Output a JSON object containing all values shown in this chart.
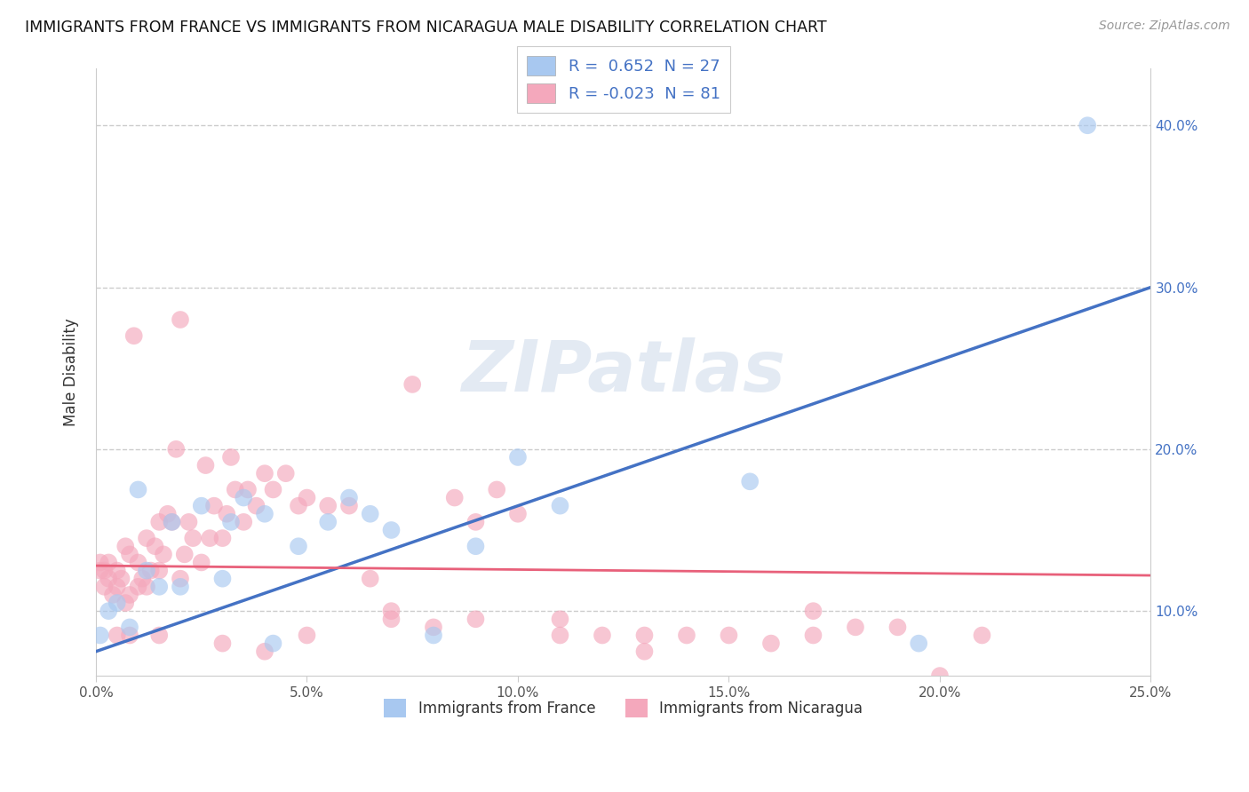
{
  "title": "IMMIGRANTS FROM FRANCE VS IMMIGRANTS FROM NICARAGUA MALE DISABILITY CORRELATION CHART",
  "source": "Source: ZipAtlas.com",
  "xlabel_france": "Immigrants from France",
  "xlabel_nicaragua": "Immigrants from Nicaragua",
  "ylabel": "Male Disability",
  "watermark": "ZIPatlas",
  "r_france": 0.652,
  "n_france": 27,
  "r_nicaragua": -0.023,
  "n_nicaragua": 81,
  "xlim": [
    0.0,
    0.25
  ],
  "ylim": [
    0.06,
    0.435
  ],
  "xticks": [
    0.0,
    0.05,
    0.1,
    0.15,
    0.2,
    0.25
  ],
  "yticks": [
    0.1,
    0.2,
    0.3,
    0.4
  ],
  "france_color": "#A8C8F0",
  "nicaragua_color": "#F4A8BC",
  "france_line_color": "#4472C4",
  "nicaragua_line_color": "#E8607A",
  "grid_color": "#CCCCCC",
  "france_line_x0": 0.0,
  "france_line_y0": 0.075,
  "france_line_x1": 0.25,
  "france_line_y1": 0.3,
  "nicaragua_line_x0": 0.0,
  "nicaragua_line_y0": 0.128,
  "nicaragua_line_x1": 0.25,
  "nicaragua_line_y1": 0.122,
  "france_scatter_x": [
    0.001,
    0.003,
    0.005,
    0.008,
    0.01,
    0.012,
    0.015,
    0.018,
    0.02,
    0.025,
    0.03,
    0.032,
    0.035,
    0.04,
    0.042,
    0.048,
    0.055,
    0.06,
    0.065,
    0.07,
    0.08,
    0.09,
    0.1,
    0.11,
    0.155,
    0.195,
    0.235
  ],
  "france_scatter_y": [
    0.085,
    0.1,
    0.105,
    0.09,
    0.175,
    0.125,
    0.115,
    0.155,
    0.115,
    0.165,
    0.12,
    0.155,
    0.17,
    0.16,
    0.08,
    0.14,
    0.155,
    0.17,
    0.16,
    0.15,
    0.085,
    0.14,
    0.195,
    0.165,
    0.18,
    0.08,
    0.4
  ],
  "nicaragua_scatter_x": [
    0.001,
    0.001,
    0.002,
    0.003,
    0.003,
    0.004,
    0.005,
    0.005,
    0.006,
    0.007,
    0.007,
    0.008,
    0.008,
    0.009,
    0.01,
    0.01,
    0.011,
    0.012,
    0.012,
    0.013,
    0.014,
    0.015,
    0.015,
    0.016,
    0.017,
    0.018,
    0.019,
    0.02,
    0.021,
    0.022,
    0.023,
    0.025,
    0.026,
    0.027,
    0.028,
    0.03,
    0.031,
    0.032,
    0.033,
    0.035,
    0.036,
    0.038,
    0.04,
    0.042,
    0.045,
    0.048,
    0.05,
    0.055,
    0.06,
    0.065,
    0.07,
    0.075,
    0.08,
    0.085,
    0.09,
    0.095,
    0.1,
    0.11,
    0.12,
    0.13,
    0.14,
    0.15,
    0.16,
    0.17,
    0.18,
    0.19,
    0.2,
    0.21,
    0.17,
    0.13,
    0.11,
    0.09,
    0.07,
    0.05,
    0.03,
    0.015,
    0.008,
    0.005,
    0.002,
    0.02,
    0.04
  ],
  "nicaragua_scatter_y": [
    0.125,
    0.13,
    0.115,
    0.12,
    0.13,
    0.11,
    0.115,
    0.125,
    0.12,
    0.105,
    0.14,
    0.11,
    0.135,
    0.27,
    0.115,
    0.13,
    0.12,
    0.115,
    0.145,
    0.125,
    0.14,
    0.125,
    0.155,
    0.135,
    0.16,
    0.155,
    0.2,
    0.12,
    0.135,
    0.155,
    0.145,
    0.13,
    0.19,
    0.145,
    0.165,
    0.145,
    0.16,
    0.195,
    0.175,
    0.155,
    0.175,
    0.165,
    0.185,
    0.175,
    0.185,
    0.165,
    0.17,
    0.165,
    0.165,
    0.12,
    0.095,
    0.24,
    0.09,
    0.17,
    0.155,
    0.175,
    0.16,
    0.095,
    0.085,
    0.085,
    0.085,
    0.085,
    0.08,
    0.085,
    0.09,
    0.09,
    0.06,
    0.085,
    0.1,
    0.075,
    0.085,
    0.095,
    0.1,
    0.085,
    0.08,
    0.085,
    0.085,
    0.085,
    0.125,
    0.28,
    0.075
  ]
}
